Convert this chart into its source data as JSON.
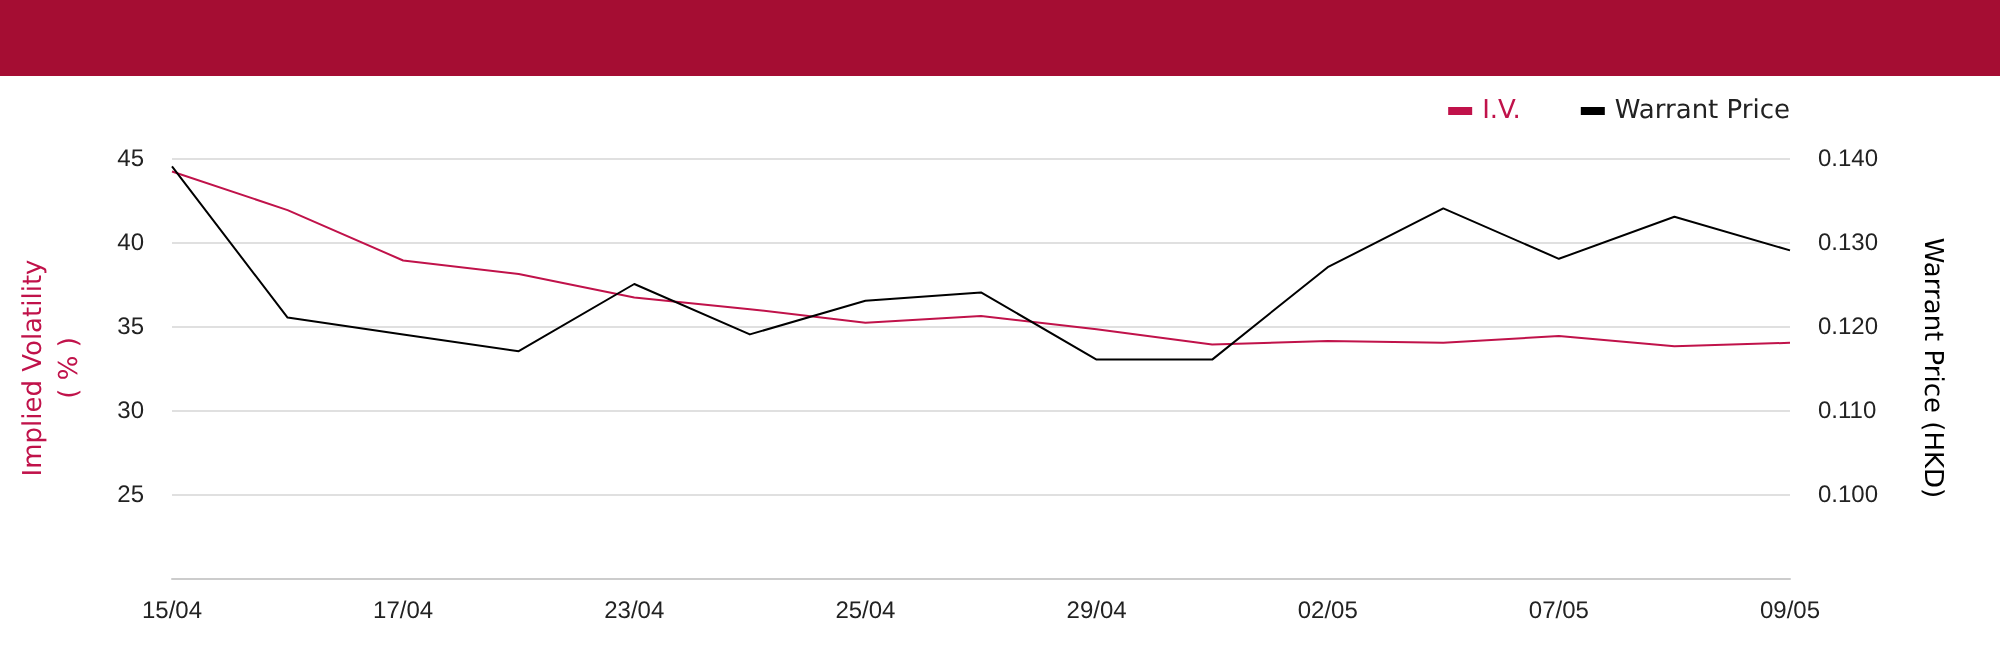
{
  "chart_data": {
    "type": "line",
    "ylabel": "Implied Volatility\n( % )",
    "y2label": "Warrant Price (HKD)",
    "categories": [
      "15/04",
      null,
      "17/04",
      null,
      "23/04",
      null,
      "25/04",
      null,
      "29/04",
      null,
      "02/05",
      null,
      "07/05",
      null,
      "09/05"
    ],
    "series": [
      {
        "name": "I.V.",
        "color": "#c0124a",
        "values": [
          44.2,
          41.9,
          38.9,
          38.1,
          36.7,
          36.0,
          35.2,
          35.6,
          34.8,
          33.9,
          34.1,
          34.0,
          34.4,
          33.8,
          34.0
        ]
      },
      {
        "name": "Warrant Price",
        "color": "#000000",
        "axis": "y2",
        "values": [
          0.139,
          0.121,
          0.119,
          0.117,
          0.125,
          0.119,
          0.123,
          0.124,
          0.116,
          0.116,
          0.127,
          0.134,
          0.128,
          0.133,
          0.129
        ]
      }
    ],
    "ylim": [
      20,
      45
    ],
    "yticks": [
      {
        "value": 20,
        "label": null
      },
      25,
      30,
      35,
      40,
      45
    ],
    "y2lim": [
      0.09,
      0.14
    ],
    "y2ticks": [
      {
        "value": 0.09,
        "label": null
      },
      {
        "value": 0.1,
        "label": "0.100"
      },
      {
        "value": 0.11,
        "label": "0.110"
      },
      {
        "value": 0.12,
        "label": "0.120"
      },
      {
        "value": 0.13,
        "label": "0.130"
      },
      {
        "value": 0.14,
        "label": "0.140"
      }
    ],
    "grid": "y",
    "legend": "top right",
    "marker": "none",
    "line_style": "solid"
  }
}
